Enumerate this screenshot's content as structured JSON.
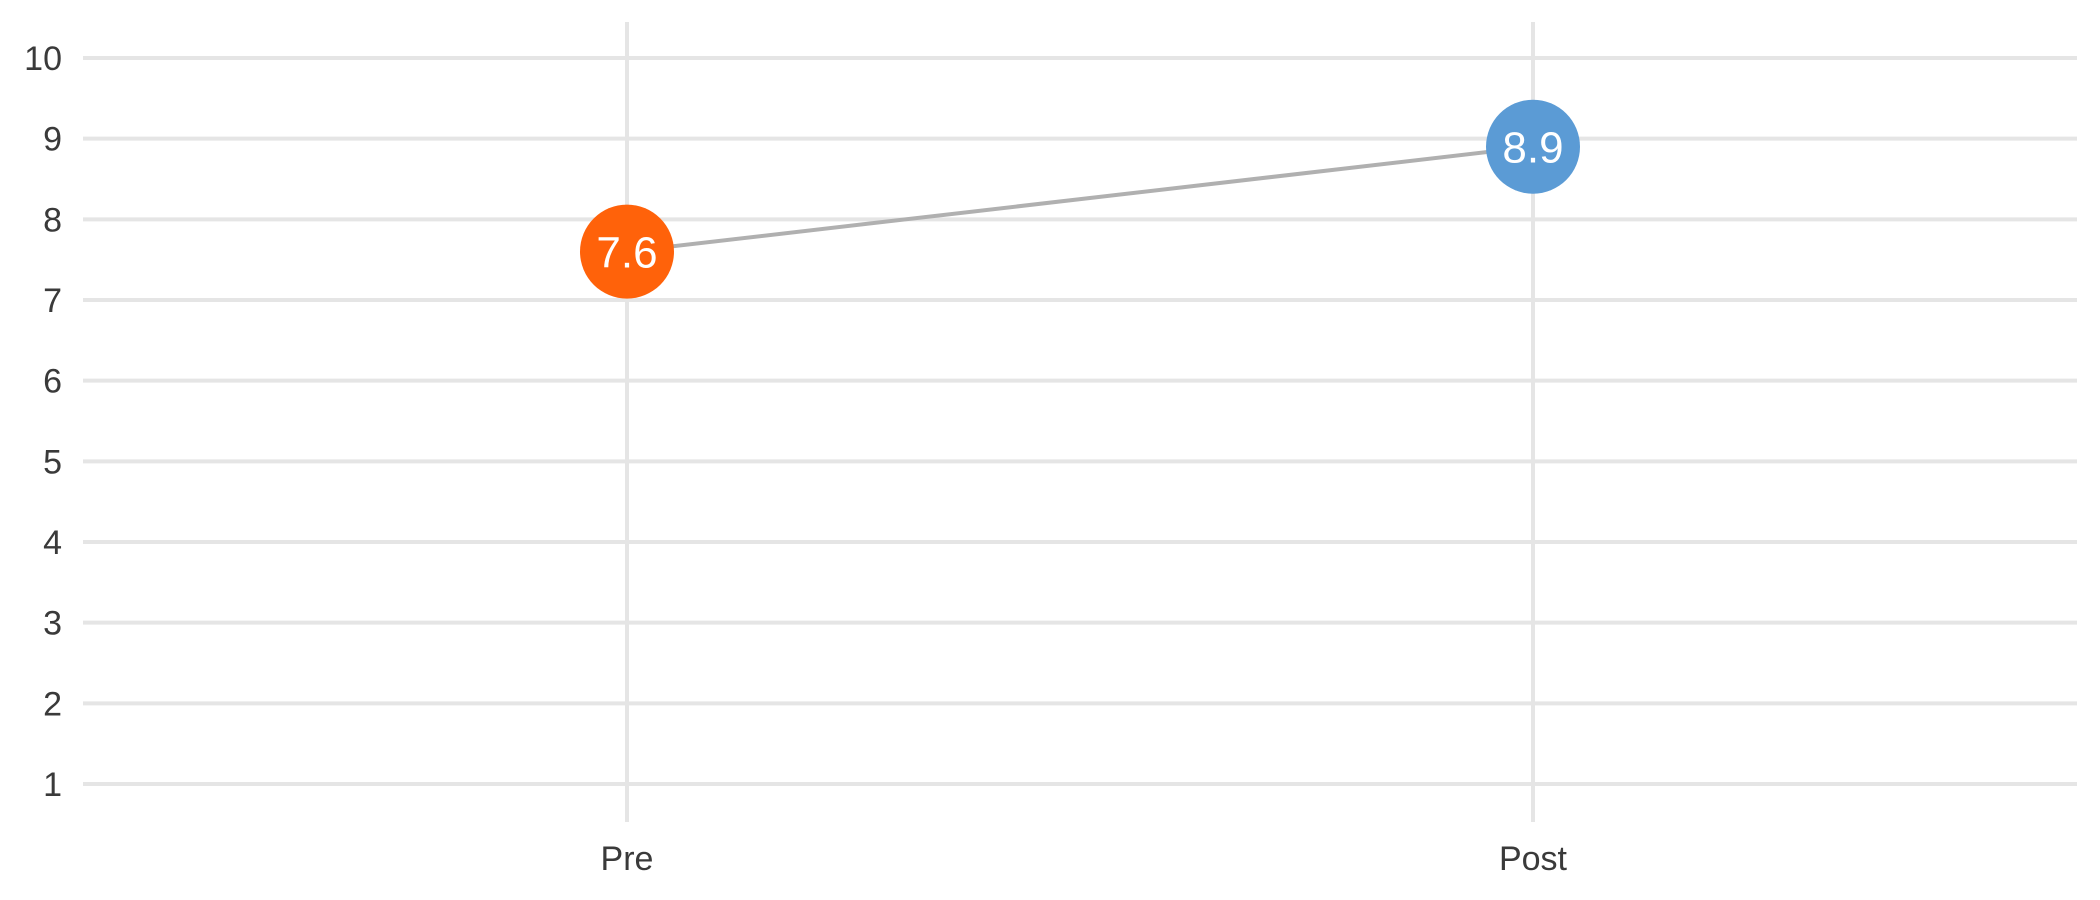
{
  "chart_data": {
    "type": "line",
    "subtype": "dumbbell / slope",
    "title": "",
    "xlabel": "",
    "ylabel": "",
    "categories": [
      "Pre",
      "Post"
    ],
    "y_ticks": [
      1,
      2,
      3,
      4,
      5,
      6,
      7,
      8,
      9,
      10
    ],
    "ylim": [
      1,
      10
    ],
    "grid": true,
    "legend": "none",
    "points": [
      {
        "category": "Pre",
        "value": 7.6,
        "label": "7.6",
        "color": "#ff620a"
      },
      {
        "category": "Post",
        "value": 8.9,
        "label": "8.9",
        "color": "#5b9bd5"
      }
    ],
    "connector_color": "#b0b0b0",
    "grid_color": "#e5e5e5"
  }
}
